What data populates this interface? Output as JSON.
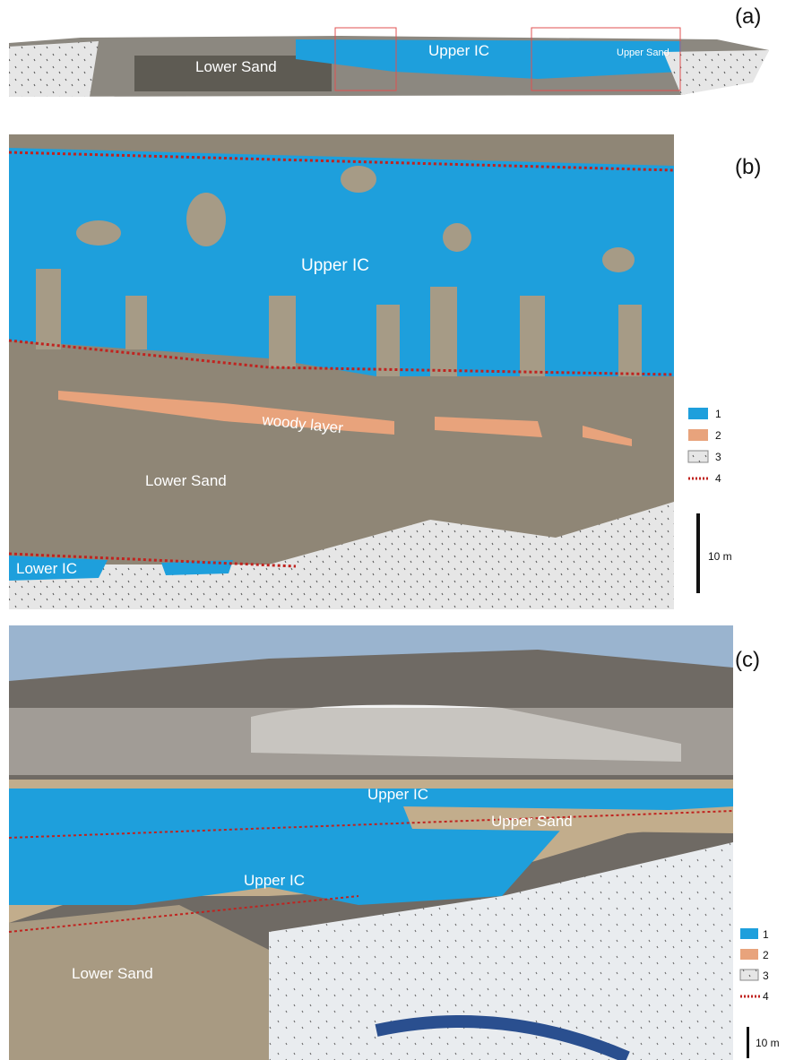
{
  "panels": [
    {
      "label": "(a)",
      "annotations": [
        "Lower Sand",
        "Upper IC",
        "Upper Sand"
      ]
    },
    {
      "label": "(b)",
      "annotations": [
        "Upper IC",
        "woody layer",
        "Lower Sand",
        "Lower IC"
      ],
      "legend": [
        "1",
        "2",
        "3",
        "4"
      ],
      "scale_bar": "10 m"
    },
    {
      "label": "(c)",
      "annotations": [
        "Upper IC",
        "Upper Sand",
        "Upper IC",
        "Lower Sand"
      ],
      "legend": [
        "1",
        "2",
        "3",
        "4"
      ],
      "scale_bar": "10 m"
    }
  ]
}
